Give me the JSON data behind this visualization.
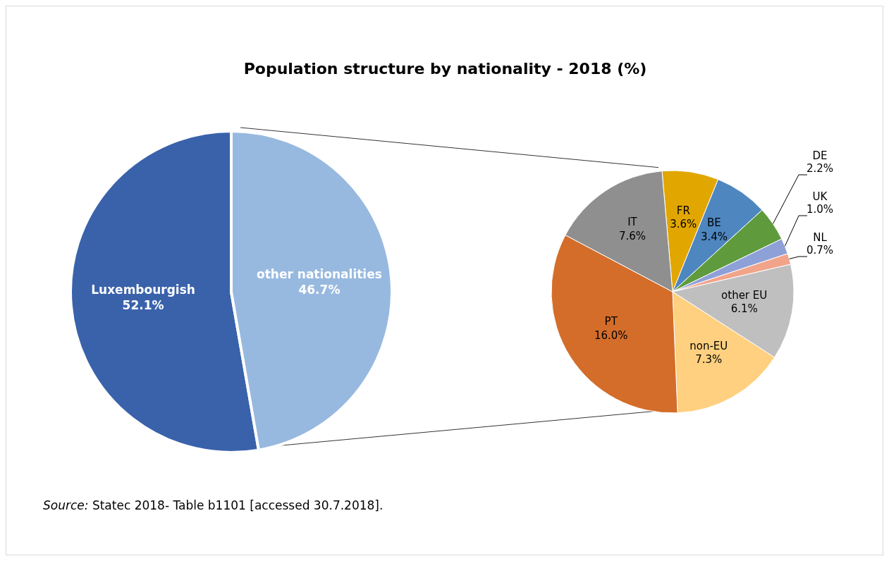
{
  "chart_data": [
    {
      "type": "pie",
      "title": "Population structure by nationality - 2018 (%)",
      "categories": [
        "Luxembourgish",
        "other nationalities"
      ],
      "values": [
        52.1,
        46.7
      ],
      "value_labels": [
        "52.1%",
        "46.7%"
      ],
      "colors": [
        "#3a62ab",
        "#98b9df"
      ],
      "annotations": [
        "Source: Statec 2018- Table b1101 [accessed 30.7.2018]."
      ]
    },
    {
      "type": "pie",
      "categories": [
        "FR",
        "BE",
        "DE",
        "UK",
        "NL",
        "other EU",
        "non-EU",
        "PT",
        "IT"
      ],
      "values": [
        3.6,
        3.4,
        2.2,
        1.0,
        0.7,
        6.1,
        7.3,
        16.0,
        7.6
      ],
      "value_labels": [
        "3.6%",
        "3.4%",
        "2.2%",
        "1.0%",
        "0.7%",
        "6.1%",
        "7.3%",
        "16.0%",
        "7.6%"
      ],
      "colors": [
        "#e2a600",
        "#4e86c0",
        "#5f9b3d",
        "#8ea0d8",
        "#f1a48a",
        "#bfbfbf",
        "#fed07f",
        "#d46d2a",
        "#8f8f8f"
      ]
    }
  ]
}
